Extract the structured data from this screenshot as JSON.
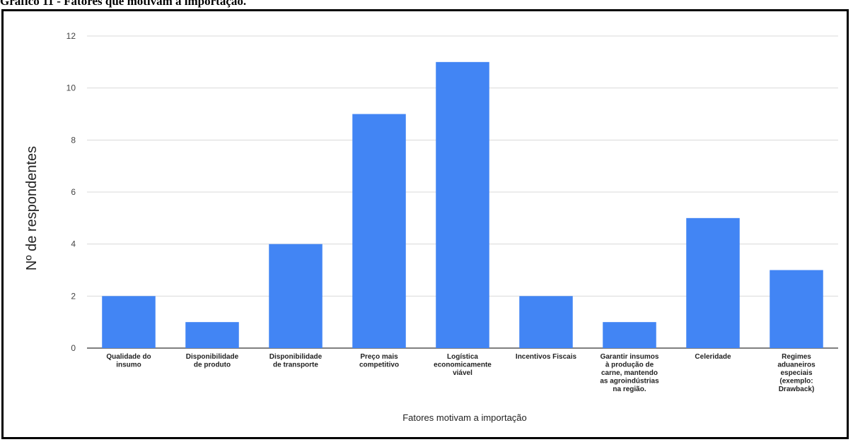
{
  "caption": "Gráfico 11 - Fatores que motivam a importação.",
  "chart_data": {
    "type": "bar",
    "categories": [
      [
        "Qualidade do",
        "insumo"
      ],
      [
        "Disponibilidade",
        "de produto"
      ],
      [
        "Disponibilidade",
        "de transporte"
      ],
      [
        "Preço mais",
        "competitivo"
      ],
      [
        "Logística",
        "economicamente",
        "viável"
      ],
      [
        "Incentivos Fiscais"
      ],
      [
        "Garantir insumos",
        "à produção de",
        "carne, mantendo",
        "as agroindústrias",
        "na região."
      ],
      [
        "Celeridade"
      ],
      [
        "Regimes",
        "aduaneiros",
        "especiais",
        "(exemplo:",
        "Drawback)"
      ]
    ],
    "values": [
      2,
      1,
      4,
      9,
      11,
      2,
      1,
      5,
      3
    ],
    "xlabel": "Fatores motivam a importação",
    "ylabel": "Nº de respondentes",
    "ylim": [
      0,
      12
    ],
    "yticks": [
      0,
      2,
      4,
      6,
      8,
      10,
      12
    ],
    "grid": true,
    "bar_color": "#4285f4",
    "grid_color": "#d9d9d9"
  }
}
